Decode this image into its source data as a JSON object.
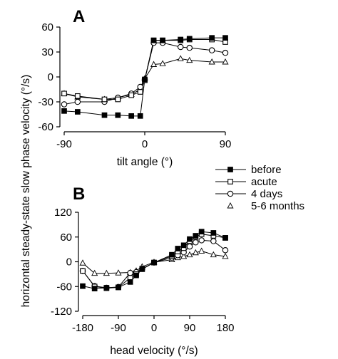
{
  "shared_ylabel": "horizontal steady-state slow phase velocity (°/s)",
  "legend": {
    "entries": [
      {
        "label": "before",
        "marker": "square-filled"
      },
      {
        "label": "acute",
        "marker": "square-open"
      },
      {
        "label": "4 days",
        "marker": "circle-open"
      },
      {
        "label": "5-6 months",
        "marker": "triangle-open"
      }
    ]
  },
  "chart_data": [
    {
      "panel": "A",
      "type": "line",
      "xlabel": "tilt angle (°)",
      "ylabel": "horizontal steady-state slow phase velocity (°/s)",
      "xlim": [
        -90,
        90
      ],
      "ylim": [
        -60,
        60
      ],
      "xticks": [
        -90,
        0,
        90
      ],
      "xtick_labels": [
        "-90",
        "0",
        "90"
      ],
      "yticks": [
        -60,
        -30,
        0,
        30,
        60
      ],
      "ytick_labels": [
        "-60",
        "-30",
        "0",
        "30",
        "60"
      ],
      "grid": false,
      "series": [
        {
          "name": "before",
          "marker": "square-filled",
          "x": [
            -90,
            -75,
            -45,
            -30,
            -15,
            -5,
            0,
            10,
            20,
            40,
            50,
            75,
            90
          ],
          "y": [
            -41,
            -42,
            -46,
            -46,
            -47,
            -47,
            -3,
            44,
            44,
            45,
            46,
            47,
            47
          ]
        },
        {
          "name": "acute",
          "marker": "square-open",
          "x": [
            -90,
            -75,
            -45,
            -30,
            -15,
            -5,
            0,
            10,
            20,
            40,
            50,
            75,
            90
          ],
          "y": [
            -20,
            -23,
            -27,
            -27,
            -22,
            -18,
            -4,
            44,
            44,
            44,
            45,
            45,
            42
          ]
        },
        {
          "name": "4 days",
          "marker": "circle-open",
          "x": [
            -90,
            -75,
            -45,
            -30,
            -15,
            -5,
            0,
            10,
            20,
            40,
            50,
            75,
            90
          ],
          "y": [
            -33,
            -30,
            -30,
            -25,
            -20,
            -12,
            -3,
            41,
            41,
            36,
            35,
            32,
            29
          ]
        },
        {
          "name": "5-6 months",
          "marker": "triangle-open",
          "x": [
            -90,
            -75,
            -45,
            -30,
            -15,
            -5,
            0,
            10,
            20,
            40,
            50,
            75,
            90
          ],
          "y": [
            -20,
            -24,
            -27,
            -25,
            -21,
            -15,
            -2,
            15,
            16,
            22,
            20,
            18,
            18
          ]
        }
      ]
    },
    {
      "panel": "B",
      "type": "line",
      "xlabel": "head velocity (°/s)",
      "ylabel": "horizontal steady-state slow phase velocity (°/s)",
      "xlim": [
        -180,
        180
      ],
      "ylim": [
        -120,
        120
      ],
      "xticks": [
        -180,
        -90,
        0,
        90,
        180
      ],
      "xtick_labels": [
        "-180",
        "-90",
        "0",
        "90",
        "180"
      ],
      "yticks": [
        -120,
        -60,
        0,
        60,
        120
      ],
      "ytick_labels": [
        "-120",
        "-60",
        "0",
        "60",
        "120"
      ],
      "grid": false,
      "series": [
        {
          "name": "before",
          "marker": "square-filled",
          "x": [
            -180,
            -150,
            -120,
            -90,
            -60,
            -45,
            -30,
            0,
            45,
            60,
            75,
            90,
            105,
            120,
            150,
            180
          ],
          "y": [
            -59,
            -65,
            -63,
            -62,
            -49,
            -33,
            -18,
            -2,
            17,
            32,
            40,
            55,
            63,
            73,
            70,
            58
          ]
        },
        {
          "name": "acute",
          "marker": "square-open",
          "x": [
            -180,
            -150,
            -120,
            -90,
            -60,
            -45,
            -30,
            0,
            45,
            60,
            75,
            90,
            105,
            120,
            150,
            180
          ],
          "y": [
            -22,
            -60,
            -64,
            -62,
            -39,
            -30,
            -17,
            -2,
            14,
            25,
            33,
            50,
            60,
            67,
            63,
            58
          ]
        },
        {
          "name": "4 days",
          "marker": "circle-open",
          "x": [
            -180,
            -150,
            -120,
            -90,
            -60,
            -45,
            -30,
            0,
            45,
            60,
            75,
            90,
            105,
            120,
            150,
            180
          ],
          "y": [
            -22,
            -59,
            -63,
            -61,
            -27,
            -25,
            -17,
            -2,
            10,
            16,
            23,
            37,
            47,
            52,
            50,
            28
          ]
        },
        {
          "name": "5-6 months",
          "marker": "triangle-open",
          "x": [
            -180,
            -150,
            -120,
            -90,
            -60,
            -45,
            -30,
            0,
            45,
            60,
            75,
            90,
            105,
            120,
            150,
            180
          ],
          "y": [
            -3,
            -28,
            -28,
            -27,
            -26,
            -22,
            -12,
            -1,
            5,
            10,
            13,
            17,
            22,
            26,
            17,
            13
          ]
        }
      ]
    }
  ]
}
